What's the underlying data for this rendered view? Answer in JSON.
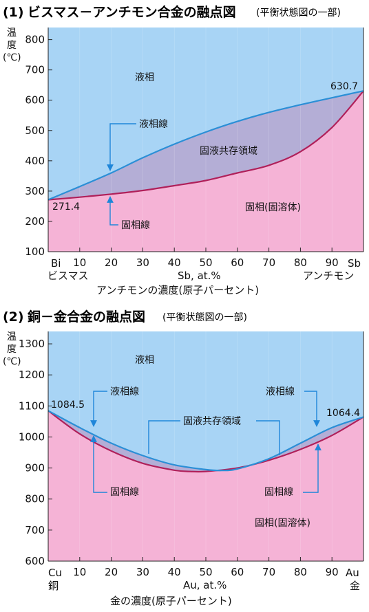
{
  "chart_data": [
    {
      "type": "line",
      "number": "(1)",
      "title": "ビスマス－アンチモン合金の融点図",
      "subtitle": "(平衡状態図の一部)",
      "ylabel": [
        "温",
        "度",
        "(℃)"
      ],
      "xlabel": "アンチモンの濃度(原子パーセント)",
      "x_unit_label": "Sb, at.%",
      "left_element": "Bi",
      "right_element": "Sb",
      "left_element_name": "ビスマス",
      "right_element_name": "アンチモン",
      "xticks": [
        "10",
        "20",
        "30",
        "40",
        "50",
        "60",
        "70",
        "80",
        "90"
      ],
      "yticks": [
        "100",
        "200",
        "300",
        "400",
        "500",
        "600",
        "700",
        "800"
      ],
      "xlim": [
        0,
        100
      ],
      "ylim": [
        100,
        840
      ],
      "series": [
        {
          "name": "液相線",
          "color": "#2b8fd6",
          "x": [
            0,
            10,
            20,
            30,
            40,
            50,
            60,
            70,
            80,
            90,
            100
          ],
          "y": [
            271.4,
            315,
            360,
            410,
            455,
            495,
            530,
            560,
            585,
            608,
            630.7
          ]
        },
        {
          "name": "固相線",
          "color": "#b0205a",
          "x": [
            0,
            10,
            20,
            30,
            40,
            50,
            60,
            70,
            80,
            90,
            100
          ],
          "y": [
            271.4,
            280,
            290,
            302,
            318,
            335,
            360,
            385,
            430,
            510,
            630.7
          ]
        }
      ],
      "annotations": {
        "liquid": "液相",
        "solid": "固相(固溶体)",
        "two_phase": "固液共存領域",
        "liquidus_label": "液相線",
        "solidus_label": "固相線",
        "left_value": "271.4",
        "right_value": "630.7"
      },
      "colors": {
        "liquid_bg": "#a8d4f5",
        "solid_bg": "#f5b3d6",
        "two_phase": "#b4aed6",
        "arrow": "#1f86d9"
      }
    },
    {
      "type": "line",
      "number": "(2)",
      "title": "銅－金合金の融点図",
      "subtitle": "(平衡状態図の一部)",
      "ylabel": [
        "温",
        "度",
        "(℃)"
      ],
      "xlabel": "金の濃度(原子パーセント)",
      "x_unit_label": "Au, at.%",
      "left_element": "Cu",
      "right_element": "Au",
      "left_element_name": "銅",
      "right_element_name": "金",
      "xticks": [
        "10",
        "20",
        "30",
        "40",
        "50",
        "60",
        "70",
        "80",
        "90"
      ],
      "yticks": [
        "600",
        "700",
        "800",
        "900",
        "1000",
        "1100",
        "1200",
        "1300"
      ],
      "xlim": [
        0,
        100
      ],
      "ylim": [
        600,
        1340
      ],
      "series": [
        {
          "name": "液相線",
          "color": "#2b8fd6",
          "x": [
            0,
            10,
            20,
            30,
            40,
            50,
            55,
            60,
            70,
            80,
            90,
            100
          ],
          "y": [
            1084.5,
            1030,
            980,
            940,
            910,
            895,
            892,
            897,
            930,
            980,
            1030,
            1064.4
          ]
        },
        {
          "name": "固相線",
          "color": "#b0205a",
          "x": [
            0,
            10,
            20,
            30,
            40,
            45,
            50,
            60,
            70,
            80,
            90,
            100
          ],
          "y": [
            1084.5,
            1010,
            955,
            915,
            893,
            889,
            889,
            900,
            925,
            960,
            1005,
            1064.4
          ]
        }
      ],
      "annotations": {
        "liquid": "液相",
        "solid": "固相(固溶体)",
        "two_phase": "固液共存領域",
        "liquidus_label_left": "液相線",
        "liquidus_label_right": "液相線",
        "solidus_label_left": "固相線",
        "solidus_label_right": "固相線",
        "left_value": "1084.5",
        "right_value": "1064.4"
      },
      "colors": {
        "liquid_bg": "#a8d4f5",
        "solid_bg": "#f5b3d6",
        "two_phase": "#b4aed6",
        "arrow": "#1f86d9"
      }
    }
  ]
}
